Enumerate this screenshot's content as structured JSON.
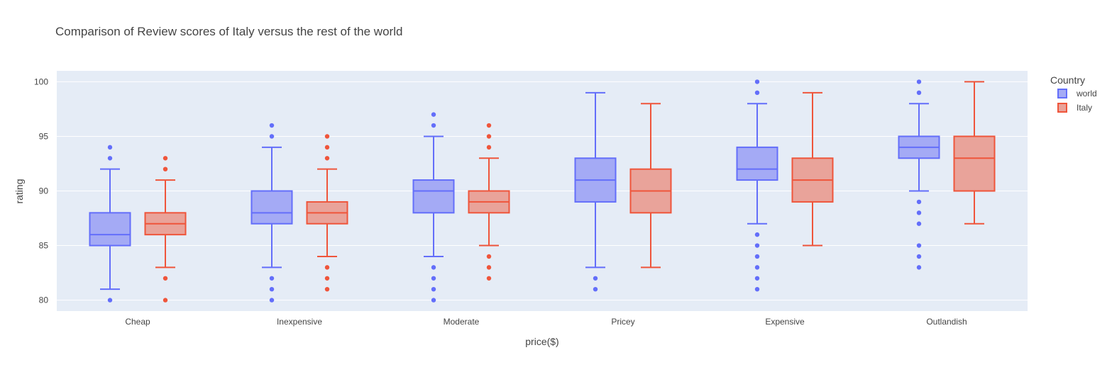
{
  "chart_data": {
    "type": "box",
    "title": "Comparison of Review scores of Italy versus the rest of the world",
    "xlabel": "price($)",
    "ylabel": "rating",
    "ylim": [
      79,
      101
    ],
    "yticks": [
      80,
      85,
      90,
      95,
      100
    ],
    "grid": true,
    "legend": {
      "title": "Country",
      "placement": "top-right"
    },
    "categories": [
      "Cheap",
      "Inexpensive",
      "Moderate",
      "Pricey",
      "Expensive",
      "Outlandish"
    ],
    "series": [
      {
        "name": "world",
        "color": "#636efa",
        "fill": "#a4aaf5",
        "boxes": [
          {
            "min": 81,
            "q1": 85,
            "median": 86,
            "q3": 88,
            "max": 92,
            "outliers": [
              80,
              93,
              94
            ]
          },
          {
            "min": 83,
            "q1": 87,
            "median": 88,
            "q3": 90,
            "max": 94,
            "outliers": [
              80,
              81,
              82,
              95,
              96
            ]
          },
          {
            "min": 84,
            "q1": 88,
            "median": 90,
            "q3": 91,
            "max": 95,
            "outliers": [
              80,
              81,
              82,
              83,
              96,
              97
            ]
          },
          {
            "min": 83,
            "q1": 89,
            "median": 91,
            "q3": 93,
            "max": 99,
            "outliers": [
              81,
              82
            ]
          },
          {
            "min": 87,
            "q1": 91,
            "median": 92,
            "q3": 94,
            "max": 98,
            "outliers": [
              81,
              82,
              83,
              84,
              85,
              86,
              99,
              100
            ]
          },
          {
            "min": 90,
            "q1": 93,
            "median": 94,
            "q3": 95,
            "max": 98,
            "outliers": [
              83,
              84,
              85,
              87,
              88,
              89,
              99,
              100
            ]
          }
        ]
      },
      {
        "name": "Italy",
        "color": "#ef553b",
        "fill": "#e9a39a",
        "boxes": [
          {
            "min": 83,
            "q1": 86,
            "median": 87,
            "q3": 88,
            "max": 91,
            "outliers": [
              80,
              82,
              92,
              93
            ]
          },
          {
            "min": 84,
            "q1": 87,
            "median": 88,
            "q3": 89,
            "max": 92,
            "outliers": [
              81,
              82,
              83,
              93,
              94,
              95
            ]
          },
          {
            "min": 85,
            "q1": 88,
            "median": 89,
            "q3": 90,
            "max": 93,
            "outliers": [
              82,
              83,
              84,
              94,
              95,
              96
            ]
          },
          {
            "min": 83,
            "q1": 88,
            "median": 90,
            "q3": 92,
            "max": 98,
            "outliers": []
          },
          {
            "min": 85,
            "q1": 89,
            "median": 91,
            "q3": 93,
            "max": 99,
            "outliers": []
          },
          {
            "min": 87,
            "q1": 90,
            "median": 93,
            "q3": 95,
            "max": 100,
            "outliers": []
          }
        ]
      }
    ]
  }
}
